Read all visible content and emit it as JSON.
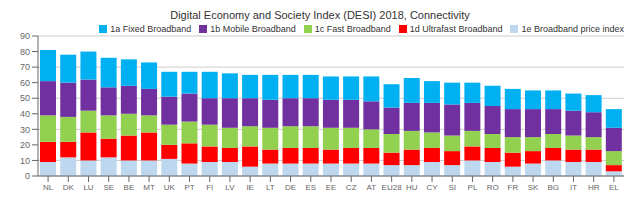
{
  "chart_data": {
    "type": "bar",
    "title": "Digital Economy and Society Index (DESI) 2018, Connectivity",
    "categories": [
      "NL",
      "DK",
      "LU",
      "SE",
      "BE",
      "MT",
      "UK",
      "PT",
      "FI",
      "LV",
      "IE",
      "LT",
      "DE",
      "ES",
      "EE",
      "CZ",
      "AT",
      "EU28",
      "HU",
      "CY",
      "SI",
      "PL",
      "RO",
      "FR",
      "SK",
      "BG",
      "IT",
      "HR",
      "EL"
    ],
    "series": [
      {
        "name": "1e Broadband price index",
        "color": "#BDD7EE",
        "values": [
          9,
          12,
          10,
          12,
          10,
          10,
          11,
          8,
          9,
          9,
          6,
          8,
          8,
          8,
          8,
          8,
          8,
          7,
          7,
          9,
          7,
          10,
          9,
          6,
          8,
          10,
          9,
          9,
          3
        ]
      },
      {
        "name": "1d Ultrafast Broadband",
        "color": "#FF0000",
        "values": [
          13,
          10,
          18,
          12,
          16,
          18,
          9,
          13,
          10,
          9,
          13,
          9,
          10,
          10,
          9,
          10,
          10,
          8,
          10,
          9,
          9,
          9,
          9,
          9,
          8,
          8,
          8,
          8,
          4
        ]
      },
      {
        "name": "1c Fast Broadband",
        "color": "#92D050",
        "values": [
          17,
          16,
          14,
          15,
          14,
          11,
          13,
          14,
          14,
          13,
          13,
          14,
          14,
          14,
          14,
          13,
          12,
          12,
          12,
          10,
          10,
          10,
          9,
          10,
          9,
          9,
          9,
          8,
          9
        ]
      },
      {
        "name": "1b Mobile Broadband",
        "color": "#7030A0",
        "values": [
          22,
          22,
          20,
          18,
          18,
          17,
          18,
          18,
          17,
          19,
          18,
          18,
          18,
          18,
          18,
          18,
          18,
          17,
          18,
          19,
          20,
          18,
          18,
          18,
          18,
          16,
          16,
          16,
          15
        ]
      },
      {
        "name": "1a Fixed Broadband",
        "color": "#00B0F0",
        "values": [
          20,
          18,
          18,
          19,
          17,
          17,
          16,
          14,
          17,
          16,
          15,
          16,
          15,
          15,
          15,
          15,
          16,
          15,
          16,
          14,
          14,
          13,
          13,
          13,
          12,
          12,
          11,
          11,
          12
        ]
      }
    ],
    "ylim": [
      0,
      90
    ],
    "yticks": [
      0,
      10,
      20,
      30,
      40,
      50,
      60,
      70,
      80,
      90
    ],
    "stacked": true,
    "grid": true,
    "legend": "upper right"
  }
}
